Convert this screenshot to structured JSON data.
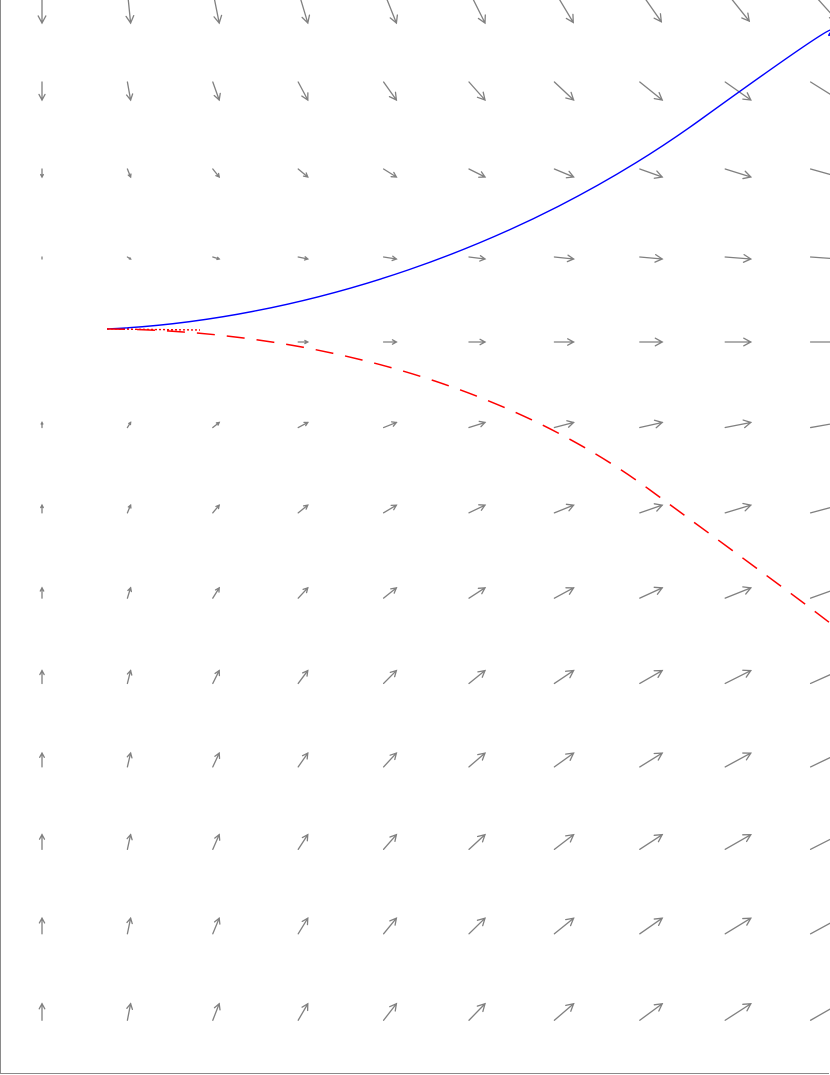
{
  "figure": {
    "description_free": true,
    "background": "#ffffff",
    "frame_color": "#8a8a8a"
  },
  "vector_field": {
    "arrow_color": "#808080",
    "rows": 13,
    "cols": 10,
    "note_columns_clipped_right": true
  },
  "curves": [
    {
      "name": "",
      "color": "#0000ff",
      "style": "solid"
    },
    {
      "name": "",
      "color": "#ff0000",
      "style": "dashed"
    }
  ]
}
